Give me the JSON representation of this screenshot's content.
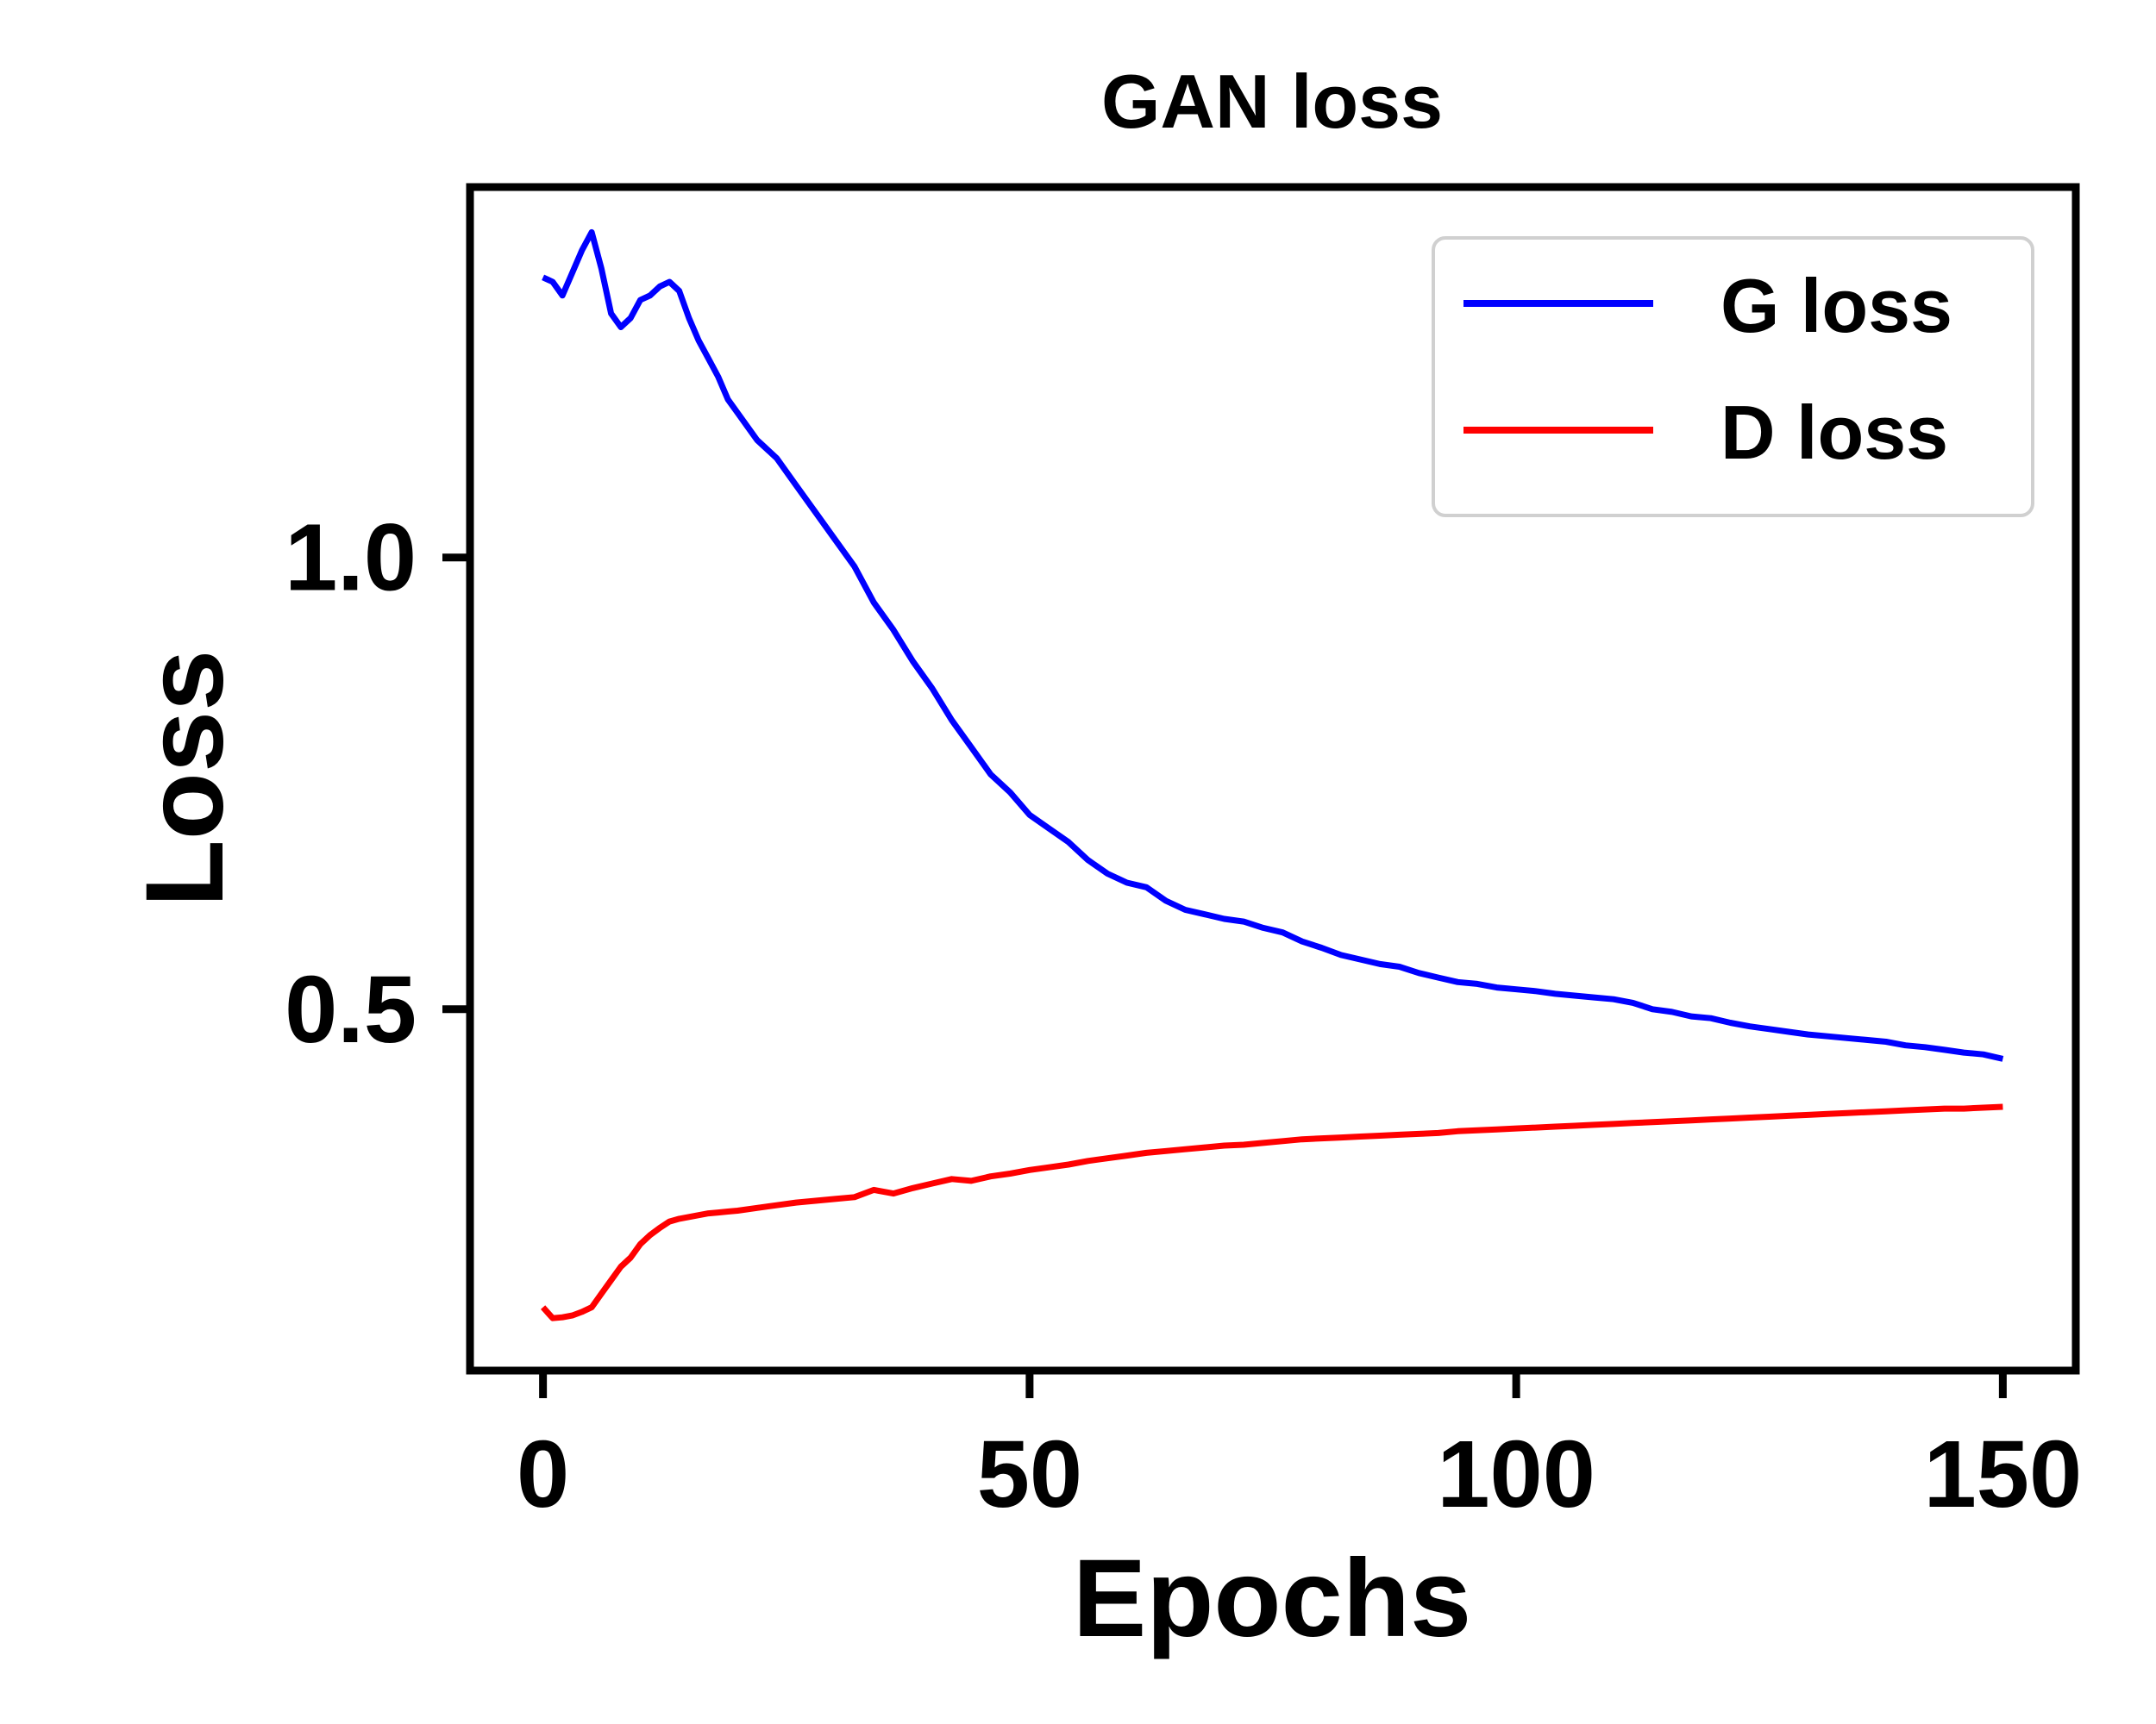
{
  "chart_data": {
    "type": "line",
    "title": "GAN loss",
    "xlabel": "Epochs",
    "ylabel": "Loss",
    "xlim": [
      -7.5,
      157.5
    ],
    "ylim": [
      0.1,
      1.41
    ],
    "xticks": [
      0,
      50,
      100,
      150
    ],
    "xtick_labels": [
      "0",
      "50",
      "100",
      "150"
    ],
    "yticks": [
      0.5,
      1.0
    ],
    "ytick_labels": [
      "0.5",
      "1.0"
    ],
    "grid": false,
    "legend_position": "top-right",
    "series": [
      {
        "name": "G loss",
        "color": "#0000ff",
        "x": [
          0,
          1,
          2,
          3,
          4,
          5,
          6,
          7,
          8,
          9,
          10,
          11,
          12,
          13,
          14,
          15,
          16,
          17,
          18,
          19,
          20,
          22,
          24,
          26,
          28,
          30,
          32,
          34,
          36,
          38,
          40,
          42,
          44,
          46,
          48,
          50,
          52,
          54,
          56,
          58,
          60,
          62,
          64,
          66,
          68,
          70,
          72,
          74,
          76,
          78,
          80,
          82,
          84,
          86,
          88,
          90,
          92,
          94,
          96,
          98,
          100,
          102,
          104,
          106,
          108,
          110,
          112,
          114,
          116,
          118,
          120,
          122,
          124,
          126,
          128,
          130,
          132,
          134,
          136,
          138,
          140,
          142,
          144,
          146,
          148,
          150
        ],
        "y": [
          1.31,
          1.305,
          1.29,
          1.315,
          1.34,
          1.36,
          1.32,
          1.27,
          1.255,
          1.265,
          1.285,
          1.29,
          1.3,
          1.305,
          1.295,
          1.265,
          1.24,
          1.22,
          1.2,
          1.175,
          1.16,
          1.13,
          1.11,
          1.08,
          1.05,
          1.02,
          0.99,
          0.95,
          0.92,
          0.885,
          0.855,
          0.82,
          0.79,
          0.76,
          0.74,
          0.715,
          0.7,
          0.685,
          0.665,
          0.65,
          0.64,
          0.635,
          0.62,
          0.61,
          0.605,
          0.6,
          0.597,
          0.59,
          0.585,
          0.575,
          0.568,
          0.56,
          0.555,
          0.55,
          0.547,
          0.54,
          0.535,
          0.53,
          0.528,
          0.524,
          0.522,
          0.52,
          0.517,
          0.515,
          0.513,
          0.511,
          0.507,
          0.5,
          0.497,
          0.492,
          0.49,
          0.485,
          0.481,
          0.478,
          0.475,
          0.472,
          0.47,
          0.468,
          0.466,
          0.464,
          0.46,
          0.458,
          0.455,
          0.452,
          0.45,
          0.445
        ]
      },
      {
        "name": "D loss",
        "color": "#ff0000",
        "x": [
          0,
          1,
          2,
          3,
          4,
          5,
          6,
          7,
          8,
          9,
          10,
          11,
          12,
          13,
          14,
          15,
          16,
          17,
          18,
          19,
          20,
          22,
          24,
          26,
          28,
          30,
          32,
          34,
          36,
          38,
          40,
          42,
          44,
          46,
          48,
          50,
          52,
          54,
          56,
          58,
          60,
          62,
          64,
          66,
          68,
          70,
          72,
          74,
          76,
          78,
          80,
          82,
          84,
          86,
          88,
          90,
          92,
          94,
          96,
          98,
          100,
          102,
          104,
          106,
          108,
          110,
          112,
          114,
          116,
          118,
          120,
          122,
          124,
          126,
          128,
          130,
          132,
          134,
          136,
          138,
          140,
          142,
          144,
          146,
          148,
          150
        ],
        "y": [
          0.17,
          0.158,
          0.159,
          0.161,
          0.165,
          0.17,
          0.185,
          0.2,
          0.215,
          0.225,
          0.24,
          0.25,
          0.258,
          0.265,
          0.268,
          0.27,
          0.272,
          0.274,
          0.275,
          0.276,
          0.277,
          0.28,
          0.283,
          0.286,
          0.288,
          0.29,
          0.292,
          0.3,
          0.296,
          0.302,
          0.307,
          0.312,
          0.31,
          0.315,
          0.318,
          0.322,
          0.325,
          0.328,
          0.332,
          0.335,
          0.338,
          0.341,
          0.343,
          0.345,
          0.347,
          0.349,
          0.35,
          0.352,
          0.354,
          0.356,
          0.357,
          0.358,
          0.359,
          0.36,
          0.361,
          0.362,
          0.363,
          0.365,
          0.366,
          0.367,
          0.368,
          0.369,
          0.37,
          0.371,
          0.372,
          0.373,
          0.374,
          0.375,
          0.376,
          0.377,
          0.378,
          0.379,
          0.38,
          0.381,
          0.382,
          0.383,
          0.384,
          0.385,
          0.386,
          0.387,
          0.388,
          0.389,
          0.39,
          0.39,
          0.391,
          0.392
        ]
      }
    ]
  }
}
